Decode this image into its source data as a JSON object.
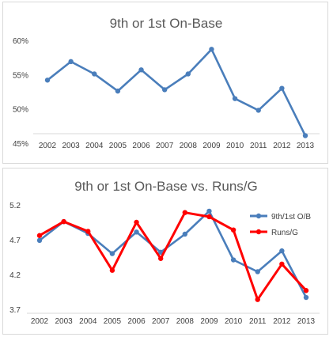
{
  "chart_data": [
    {
      "type": "line",
      "title": "9th or 1st On-Base",
      "xlabel": "",
      "ylabel": "",
      "categories": [
        "2002",
        "2003",
        "2004",
        "2005",
        "2006",
        "2007",
        "2008",
        "2009",
        "2010",
        "2011",
        "2012",
        "2013"
      ],
      "series": [
        {
          "values": [
            0.542,
            0.569,
            0.551,
            0.526,
            0.557,
            0.528,
            0.551,
            0.587,
            0.515,
            0.498,
            0.53,
            0.461
          ]
        }
      ],
      "ylim": [
        0.45,
        0.6
      ],
      "yticks": [
        "45%",
        "50%",
        "55%",
        "60%"
      ],
      "colors": [
        "#4a7ebb"
      ],
      "grid": false,
      "legend": "none"
    },
    {
      "type": "line",
      "title": "9th or 1st On-Base vs. Runs/G",
      "xlabel": "",
      "ylabel": "",
      "categories": [
        "2002",
        "2003",
        "2004",
        "2005",
        "2006",
        "2007",
        "2008",
        "2009",
        "2010",
        "2011",
        "2012",
        "2013"
      ],
      "series": [
        {
          "name": "9th/1st O/B",
          "values": [
            4.69,
            4.96,
            4.79,
            4.5,
            4.81,
            4.52,
            4.78,
            5.11,
            4.41,
            4.24,
            4.54,
            3.87
          ]
        },
        {
          "name": "Runs/G",
          "values": [
            4.76,
            4.96,
            4.82,
            4.26,
            4.95,
            4.43,
            5.09,
            5.03,
            4.84,
            3.84,
            4.35,
            3.97
          ]
        }
      ],
      "ylim": [
        3.7,
        5.2
      ],
      "yticks": [
        "3.7",
        "4.2",
        "4.7",
        "5.2"
      ],
      "colors": [
        "#4a7ebb",
        "#ff0000"
      ],
      "grid": false,
      "legend": "top-right"
    }
  ]
}
